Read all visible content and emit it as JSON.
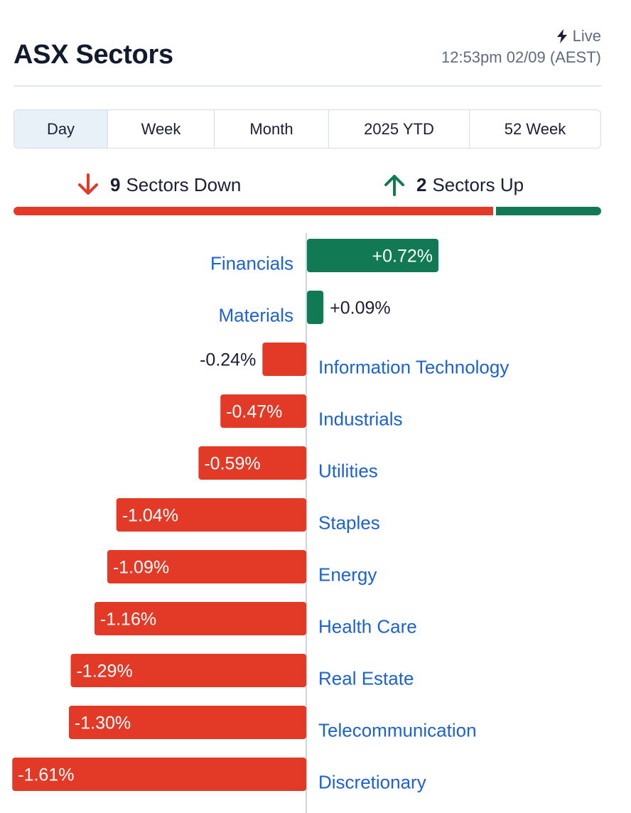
{
  "header": {
    "title": "ASX Sectors",
    "live_label": "Live",
    "timestamp": "12:53pm 02/09 (AEST)"
  },
  "tabs": [
    {
      "label": "Day",
      "active": true
    },
    {
      "label": "Week",
      "active": false
    },
    {
      "label": "Month",
      "active": false
    },
    {
      "label": "2025 YTD",
      "active": false
    },
    {
      "label": "52 Week",
      "active": false
    }
  ],
  "summary": {
    "down_count": "9",
    "down_label": "Sectors Down",
    "up_count": "2",
    "up_label": "Sectors Up",
    "down_fraction": 0.8182,
    "up_fraction": 0.1818
  },
  "colors": {
    "up": "#117a55",
    "down": "#e23a27",
    "link": "#1c62d1"
  },
  "chart_data": {
    "type": "bar",
    "orientation": "horizontal",
    "categories": [
      "Financials",
      "Materials",
      "Information Technology",
      "Industrials",
      "Utilities",
      "Staples",
      "Energy",
      "Health Care",
      "Real Estate",
      "Telecommunication",
      "Discretionary"
    ],
    "values": [
      0.72,
      0.09,
      -0.24,
      -0.47,
      -0.59,
      -1.04,
      -1.09,
      -1.16,
      -1.29,
      -1.3,
      -1.61
    ],
    "value_labels": [
      "+0.72%",
      "+0.09%",
      "-0.24%",
      "-0.47%",
      "-0.59%",
      "-1.04%",
      "-1.09%",
      "-1.16%",
      "-1.29%",
      "-1.30%",
      "-1.61%"
    ],
    "unit": "%",
    "title": "",
    "xlabel": "",
    "ylabel": ""
  }
}
